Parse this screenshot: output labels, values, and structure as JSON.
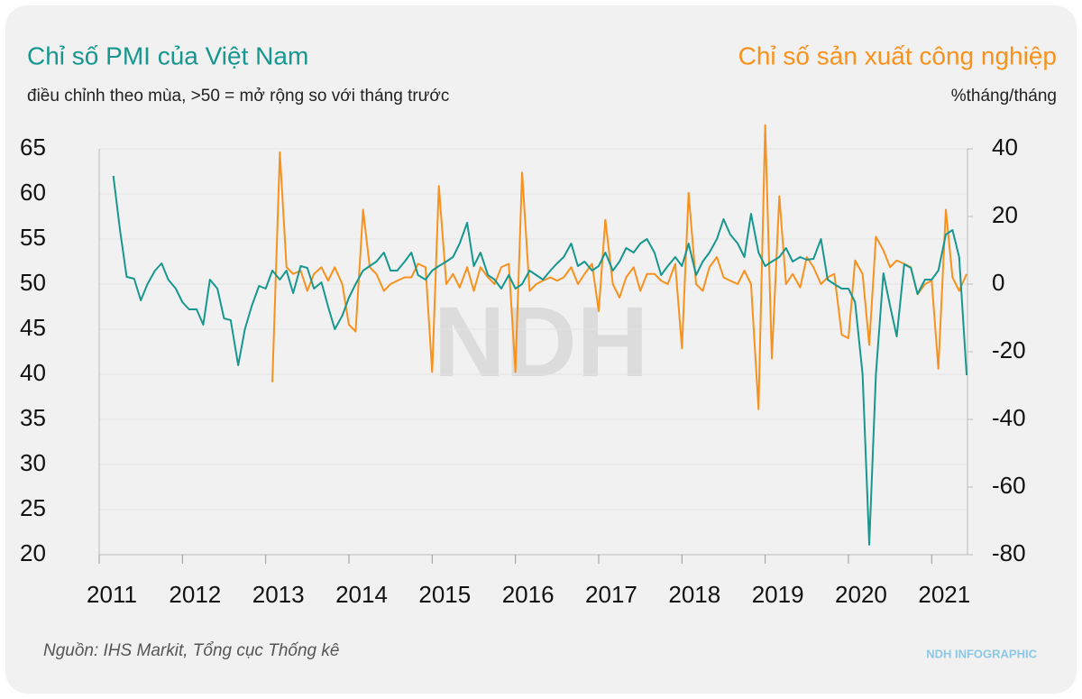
{
  "chart_data": {
    "type": "line",
    "title": "Chỉ số PMI của Việt Nam",
    "y2title": "Chỉ số sản xuất công nghiệp",
    "ylabel": "điều chỉnh theo mùa, >50 = mở rộng so với tháng trước",
    "y2label": "%tháng/tháng",
    "watermark": "NDH",
    "source": "Nguồn: IHS Markit, Tổng cục Thống kê",
    "brand": "NDH INFOGRAPHIC",
    "xlim": [
      2011,
      2021.43
    ],
    "xticks": [
      2011,
      2012,
      2013,
      2014,
      2015,
      2016,
      2017,
      2018,
      2019,
      2020,
      2021
    ],
    "ylim": [
      20,
      65
    ],
    "yticks": [
      20,
      25,
      30,
      35,
      40,
      45,
      50,
      55,
      60,
      65
    ],
    "y2lim": [
      -80,
      40
    ],
    "y2ticks": [
      -80,
      -60,
      -40,
      -20,
      0,
      20,
      40
    ],
    "grid": true,
    "series": [
      {
        "name": "Chỉ số PMI của Việt Nam",
        "color": "#17978f",
        "axis": "y",
        "x": [
          2011.17,
          2011.25,
          2011.33,
          2011.42,
          2011.5,
          2011.58,
          2011.67,
          2011.75,
          2011.83,
          2011.92,
          2012,
          2012.08,
          2012.17,
          2012.25,
          2012.33,
          2012.42,
          2012.5,
          2012.58,
          2012.67,
          2012.75,
          2012.83,
          2012.92,
          2013,
          2013.08,
          2013.17,
          2013.25,
          2013.33,
          2013.42,
          2013.5,
          2013.58,
          2013.67,
          2013.75,
          2013.83,
          2013.92,
          2014,
          2014.08,
          2014.17,
          2014.25,
          2014.33,
          2014.42,
          2014.5,
          2014.58,
          2014.67,
          2014.75,
          2014.83,
          2014.92,
          2015,
          2015.08,
          2015.17,
          2015.25,
          2015.33,
          2015.42,
          2015.5,
          2015.58,
          2015.67,
          2015.75,
          2015.83,
          2015.92,
          2016,
          2016.08,
          2016.17,
          2016.25,
          2016.33,
          2016.42,
          2016.5,
          2016.58,
          2016.67,
          2016.75,
          2016.83,
          2016.92,
          2017,
          2017.08,
          2017.17,
          2017.25,
          2017.33,
          2017.42,
          2017.5,
          2017.58,
          2017.67,
          2017.75,
          2017.83,
          2017.92,
          2018,
          2018.08,
          2018.17,
          2018.25,
          2018.33,
          2018.42,
          2018.5,
          2018.58,
          2018.67,
          2018.75,
          2018.83,
          2018.92,
          2019,
          2019.08,
          2019.17,
          2019.25,
          2019.33,
          2019.42,
          2019.5,
          2019.58,
          2019.67,
          2019.75,
          2019.83,
          2019.92,
          2020,
          2020.08,
          2020.17,
          2020.25,
          2020.33,
          2020.42,
          2020.5,
          2020.58,
          2020.67,
          2020.75,
          2020.83,
          2020.92,
          2021,
          2021.08,
          2021.17,
          2021.25,
          2021.33,
          2021.42
        ],
        "values": [
          62,
          56,
          50.8,
          50.6,
          48.2,
          50,
          51.5,
          52.3,
          50.5,
          49.5,
          48,
          47.2,
          47.2,
          45.5,
          50.5,
          49.5,
          46.2,
          46,
          41,
          45,
          47.5,
          49.8,
          49.5,
          51.5,
          50.5,
          51.5,
          49,
          52,
          51.8,
          49.5,
          50.2,
          47.5,
          45,
          46.5,
          48.5,
          50,
          51.5,
          52,
          52.5,
          53.5,
          51.5,
          51.5,
          52.5,
          53.5,
          51,
          50.5,
          51.5,
          52,
          52.5,
          53,
          54.5,
          56.8,
          52,
          53.5,
          51,
          50.5,
          49.5,
          51,
          49.5,
          50,
          51.5,
          51,
          50.5,
          51.5,
          52.3,
          53,
          54.5,
          52,
          52.5,
          51.5,
          52,
          53.5,
          51.5,
          52.5,
          54,
          53.5,
          54.5,
          55,
          53.5,
          51,
          52,
          53,
          52,
          54.5,
          51,
          52.5,
          53.5,
          55,
          57.2,
          55.5,
          54.5,
          53,
          57.8,
          53.5,
          52,
          52.5,
          53,
          54,
          52.5,
          53,
          52.7,
          52.8,
          55,
          50.5,
          50,
          49.5,
          49.5,
          48,
          40,
          21.1,
          40,
          51.2,
          47.6,
          44.2,
          52.2,
          51.8,
          48.9,
          50.5,
          50.5,
          51.5,
          55.5,
          56,
          53,
          39.9
        ]
      },
      {
        "name": "Chỉ số sản xuất công nghiệp",
        "color": "#f7921e",
        "axis": "y2",
        "x": [
          2013.08,
          2013.17,
          2013.25,
          2013.33,
          2013.42,
          2013.5,
          2013.58,
          2013.67,
          2013.75,
          2013.83,
          2013.92,
          2014,
          2014.08,
          2014.17,
          2014.25,
          2014.33,
          2014.42,
          2014.5,
          2014.58,
          2014.67,
          2014.75,
          2014.83,
          2014.92,
          2015,
          2015.08,
          2015.17,
          2015.25,
          2015.33,
          2015.42,
          2015.5,
          2015.58,
          2015.67,
          2015.75,
          2015.83,
          2015.92,
          2016,
          2016.08,
          2016.17,
          2016.25,
          2016.33,
          2016.42,
          2016.5,
          2016.58,
          2016.67,
          2016.75,
          2016.83,
          2016.92,
          2017,
          2017.08,
          2017.17,
          2017.25,
          2017.33,
          2017.42,
          2017.5,
          2017.58,
          2017.67,
          2017.75,
          2017.83,
          2017.92,
          2018,
          2018.08,
          2018.17,
          2018.25,
          2018.33,
          2018.42,
          2018.5,
          2018.58,
          2018.67,
          2018.75,
          2018.83,
          2018.92,
          2019,
          2019.08,
          2019.17,
          2019.25,
          2019.33,
          2019.42,
          2019.5,
          2019.58,
          2019.67,
          2019.75,
          2019.83,
          2019.92,
          2020,
          2020.08,
          2020.17,
          2020.25,
          2020.33,
          2020.42,
          2020.5,
          2020.58,
          2020.67,
          2020.75,
          2020.83,
          2020.92,
          2021,
          2021.08,
          2021.17,
          2021.25,
          2021.33,
          2021.42
        ],
        "values": [
          -29,
          39,
          5,
          3,
          4,
          -2,
          3,
          5,
          1,
          5,
          0,
          -12,
          -14,
          22,
          5,
          3,
          -2,
          0,
          1,
          2,
          2,
          6,
          5,
          -26,
          29,
          0,
          3,
          -1,
          5,
          -2,
          5,
          2,
          0,
          5,
          6,
          -26,
          33,
          -2,
          0,
          1,
          2,
          1,
          2,
          5,
          0,
          3,
          6,
          -8,
          19,
          0,
          -4,
          2,
          5,
          -2,
          3,
          3,
          1,
          0,
          6,
          -19,
          27,
          0,
          -2,
          5,
          8,
          2,
          1,
          0,
          4,
          0,
          -37,
          47,
          -22,
          26,
          0,
          3,
          -1,
          8,
          5,
          0,
          2,
          3,
          -15,
          -16,
          7,
          3,
          -18,
          14,
          10,
          5,
          7,
          6,
          5,
          -3,
          0,
          1,
          -25,
          22,
          2,
          -2,
          3
        ]
      }
    ]
  }
}
